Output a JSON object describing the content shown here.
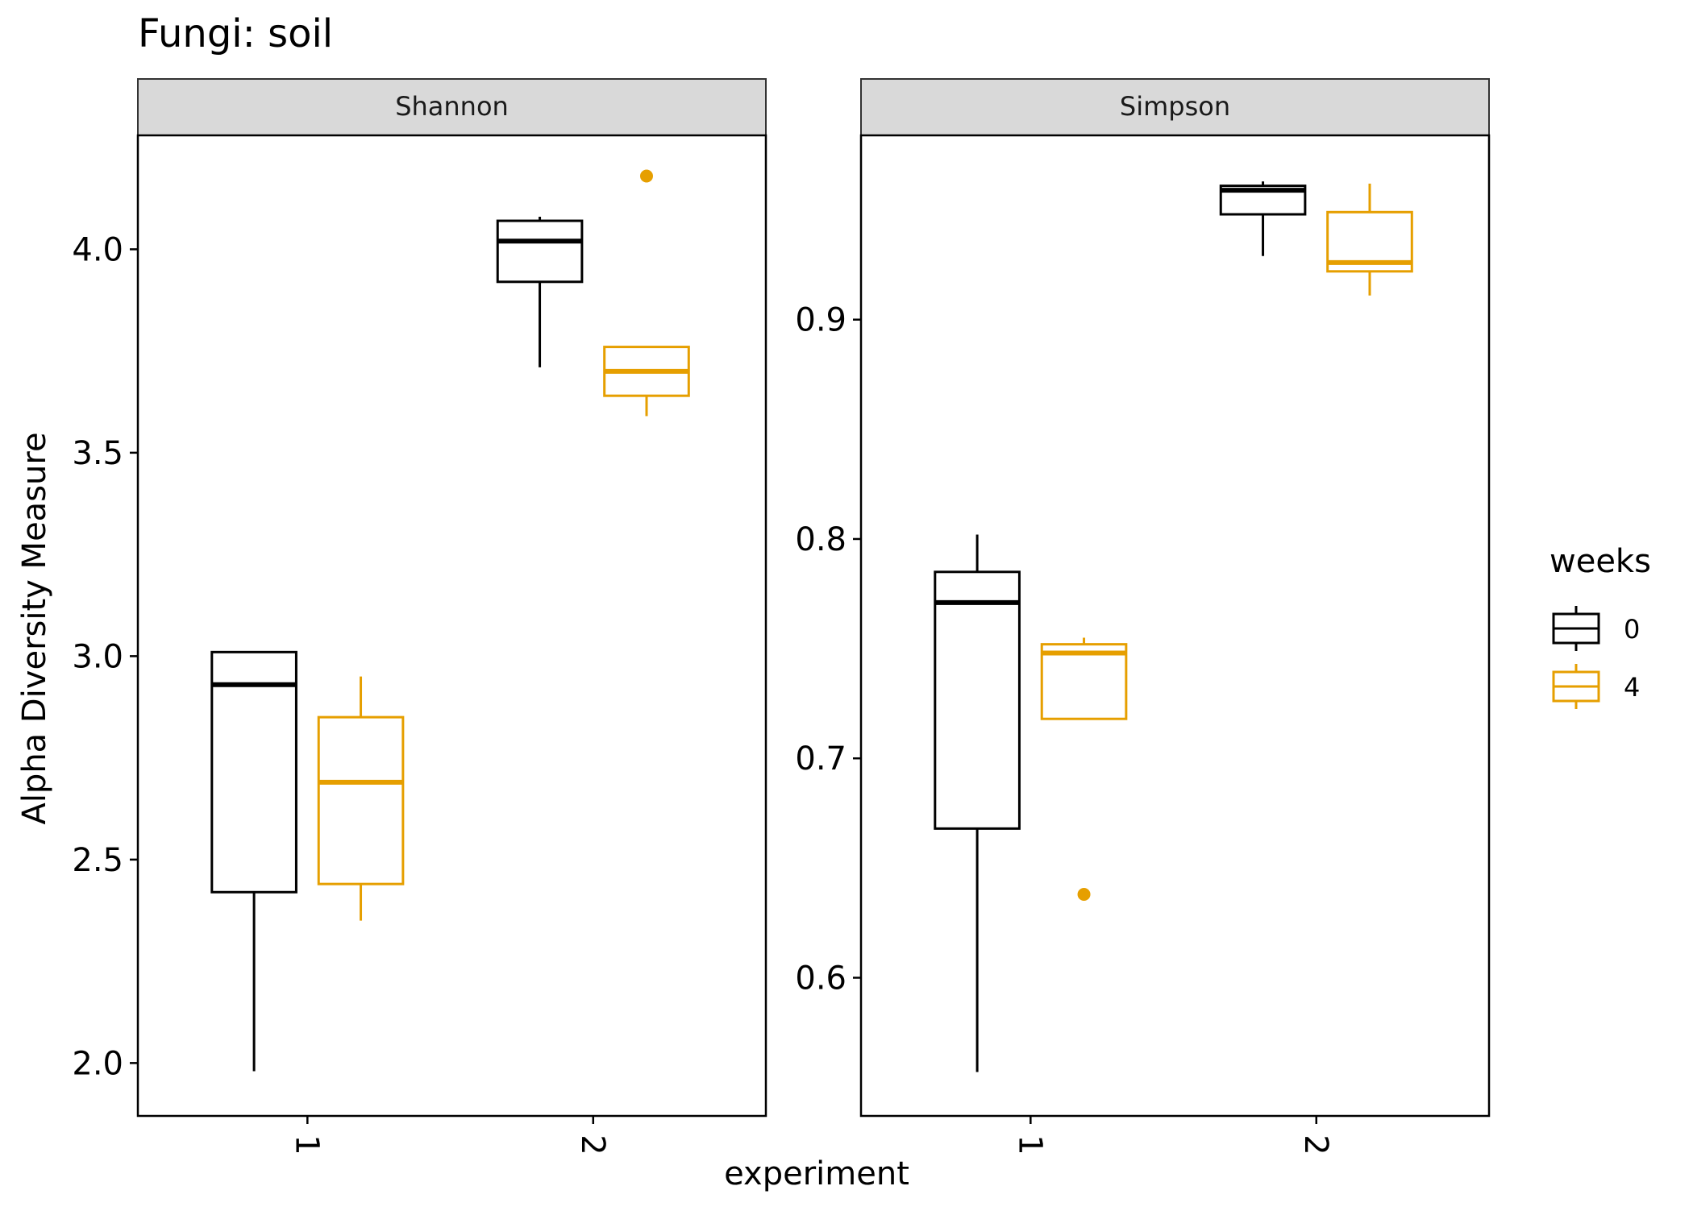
{
  "chart_data": {
    "type": "boxplot",
    "title": "Fungi: soil",
    "xlabel": "experiment",
    "ylabel": "Alpha Diversity Measure",
    "categories": [
      "1",
      "2"
    ],
    "legend": {
      "title": "weeks",
      "position": "right",
      "entries": [
        {
          "label": "0",
          "color": "#000000"
        },
        {
          "label": "4",
          "color": "#E69F00"
        }
      ]
    },
    "grid": false,
    "facets": [
      {
        "strip": "Shannon",
        "ylim": [
          1.87,
          4.28
        ],
        "yticks": [
          2.0,
          2.5,
          3.0,
          3.5,
          4.0
        ],
        "ytick_labels": [
          "2.0",
          "2.5",
          "3.0",
          "3.5",
          "4.0"
        ],
        "boxes": [
          {
            "experiment": "1",
            "weeks": "0",
            "lower_whisker": 1.98,
            "q1": 2.42,
            "median": 2.93,
            "q3": 3.01,
            "upper_whisker": 3.01,
            "outliers": []
          },
          {
            "experiment": "1",
            "weeks": "4",
            "lower_whisker": 2.35,
            "q1": 2.44,
            "median": 2.69,
            "q3": 2.85,
            "upper_whisker": 2.95,
            "outliers": []
          },
          {
            "experiment": "2",
            "weeks": "0",
            "lower_whisker": 3.71,
            "q1": 3.92,
            "median": 4.02,
            "q3": 4.07,
            "upper_whisker": 4.08,
            "outliers": []
          },
          {
            "experiment": "2",
            "weeks": "4",
            "lower_whisker": 3.59,
            "q1": 3.64,
            "median": 3.7,
            "q3": 3.76,
            "upper_whisker": 3.76,
            "outliers": [
              4.18
            ]
          }
        ]
      },
      {
        "strip": "Simpson",
        "ylim": [
          0.537,
          0.984
        ],
        "yticks": [
          0.6,
          0.7,
          0.8,
          0.9
        ],
        "ytick_labels": [
          "0.6",
          "0.7",
          "0.8",
          "0.9"
        ],
        "boxes": [
          {
            "experiment": "1",
            "weeks": "0",
            "lower_whisker": 0.557,
            "q1": 0.668,
            "median": 0.771,
            "q3": 0.785,
            "upper_whisker": 0.802,
            "outliers": []
          },
          {
            "experiment": "1",
            "weeks": "4",
            "lower_whisker": 0.718,
            "q1": 0.718,
            "median": 0.748,
            "q3": 0.752,
            "upper_whisker": 0.755,
            "outliers": [
              0.638
            ]
          },
          {
            "experiment": "2",
            "weeks": "0",
            "lower_whisker": 0.929,
            "q1": 0.948,
            "median": 0.959,
            "q3": 0.961,
            "upper_whisker": 0.963,
            "outliers": []
          },
          {
            "experiment": "2",
            "weeks": "4",
            "lower_whisker": 0.911,
            "q1": 0.922,
            "median": 0.926,
            "q3": 0.949,
            "upper_whisker": 0.962,
            "outliers": []
          }
        ]
      }
    ]
  }
}
